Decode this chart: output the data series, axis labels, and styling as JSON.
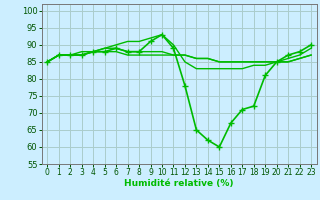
{
  "xlabel": "Humidité relative (%)",
  "bg_color": "#cceeff",
  "grid_color": "#aacccc",
  "line_color": "#00bb00",
  "xlim": [
    -0.5,
    23.5
  ],
  "ylim": [
    55,
    102
  ],
  "yticks": [
    55,
    60,
    65,
    70,
    75,
    80,
    85,
    90,
    95,
    100
  ],
  "xticks": [
    0,
    1,
    2,
    3,
    4,
    5,
    6,
    7,
    8,
    9,
    10,
    11,
    12,
    13,
    14,
    15,
    16,
    17,
    18,
    19,
    20,
    21,
    22,
    23
  ],
  "series": [
    {
      "y": [
        85,
        87,
        87,
        87,
        88,
        89,
        90,
        91,
        91,
        92,
        93,
        90,
        85,
        83,
        83,
        83,
        83,
        83,
        84,
        84,
        85,
        86,
        87,
        89
      ],
      "marker": false,
      "lw": 1.0
    },
    {
      "y": [
        85,
        87,
        87,
        87,
        88,
        88,
        88,
        87,
        87,
        87,
        87,
        87,
        87,
        86,
        86,
        85,
        85,
        85,
        85,
        85,
        85,
        85,
        86,
        87
      ],
      "marker": false,
      "lw": 1.0
    },
    {
      "y": [
        85,
        87,
        87,
        88,
        88,
        89,
        89,
        88,
        88,
        88,
        88,
        87,
        87,
        86,
        86,
        85,
        85,
        85,
        85,
        85,
        85,
        85,
        86,
        87
      ],
      "marker": false,
      "lw": 1.0
    },
    {
      "y": [
        85,
        87,
        87,
        87,
        88,
        88,
        89,
        88,
        88,
        91,
        93,
        89,
        78,
        65,
        62,
        60,
        67,
        71,
        72,
        81,
        85,
        87,
        88,
        90
      ],
      "marker": true,
      "lw": 1.2
    }
  ]
}
